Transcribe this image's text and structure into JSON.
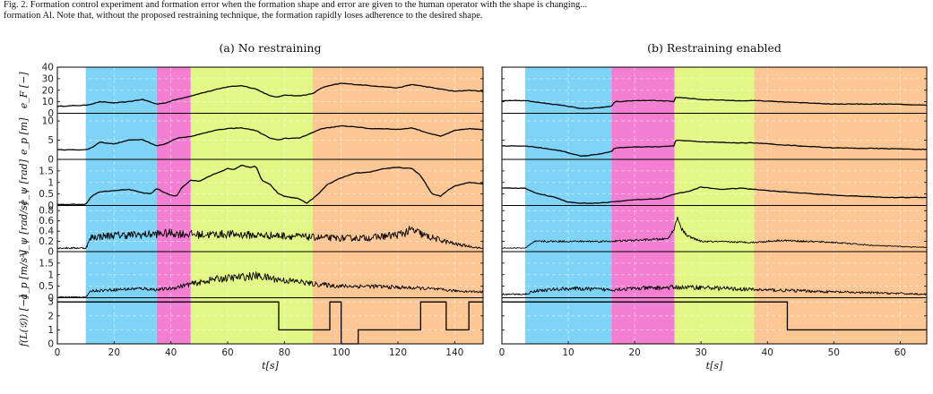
{
  "caption": {
    "line1": "Fig. 2. Formation control experiment and formation error when the formation shape and error are given to the human operator with the shape is changing...",
    "line2": "formation Al. Note that, without the proposed restraining technique, the formation rapidly loses adherence to the desired shape."
  },
  "colors": {
    "phase_blue": "#7fd3f7",
    "phase_pink": "#f27fd1",
    "phase_lime": "#e3f786",
    "phase_orange": "#fdc695",
    "line": "#000000",
    "grid": "#d8d8d8"
  },
  "rows": [
    {
      "key": "eF",
      "label": "e_F [−]",
      "ylim": [
        0,
        40
      ],
      "ticks": [
        "40",
        "30",
        "20",
        "10",
        "0"
      ],
      "tick_values": [
        40,
        30,
        20,
        10,
        0
      ]
    },
    {
      "key": "ep",
      "label": "e_p [m]",
      "ylim": [
        0,
        12
      ],
      "ticks": [
        "10",
        "5",
        "0"
      ],
      "tick_values": [
        10,
        5,
        0
      ]
    },
    {
      "key": "epsi",
      "label": "e_ψ [rad]",
      "ylim": [
        0,
        2
      ],
      "ticks": [
        "1.5",
        "1",
        "0.5",
        "0"
      ],
      "tick_values": [
        1.5,
        1,
        0.5,
        0
      ]
    },
    {
      "key": "vpsi",
      "label": "v_ψ [rad/s]",
      "ylim": [
        0,
        0.9
      ],
      "ticks": [
        "0.8",
        "0.6",
        "0.4",
        "0.2",
        "0"
      ],
      "tick_values": [
        0.8,
        0.6,
        0.4,
        0.2,
        0
      ]
    },
    {
      "key": "ap",
      "label": "a_p [m/s²]",
      "ylim": [
        0,
        2
      ],
      "ticks": [
        "1.5",
        "1",
        "0.5",
        "0"
      ],
      "tick_values": [
        1.5,
        1,
        0.5,
        0
      ]
    },
    {
      "key": "fL",
      "label": "f(L(𝒢)) [−]",
      "ylim": [
        0,
        3.3
      ],
      "ticks": [
        "3",
        "2",
        "1",
        "0"
      ],
      "tick_values": [
        3,
        2,
        1,
        0
      ]
    }
  ],
  "chart_data": [
    {
      "type": "line",
      "title": "(a) No restraining",
      "xlabel": "t[s]",
      "xlim": [
        0,
        150
      ],
      "xticks": [
        0,
        20,
        40,
        60,
        80,
        100,
        120,
        140
      ],
      "phases": [
        {
          "from": 10,
          "to": 35,
          "color": "phase_blue"
        },
        {
          "from": 35,
          "to": 47,
          "color": "phase_pink"
        },
        {
          "from": 47,
          "to": 90,
          "color": "phase_lime"
        },
        {
          "from": 90,
          "to": 150,
          "color": "phase_orange"
        }
      ],
      "series": {
        "eF": {
          "t": [
            0,
            10,
            12,
            15,
            20,
            25,
            30,
            35,
            38,
            42,
            47,
            50,
            55,
            60,
            65,
            70,
            75,
            78,
            80,
            85,
            90,
            93,
            96,
            100,
            105,
            110,
            115,
            120,
            125,
            130,
            135,
            140,
            145,
            150
          ],
          "v": [
            6,
            7,
            8,
            10,
            9,
            10,
            12,
            8,
            9,
            12,
            15,
            17,
            20,
            23,
            24,
            21,
            15,
            14,
            16,
            15,
            17,
            22,
            24,
            26,
            25,
            24,
            23,
            22,
            25,
            23,
            21,
            19,
            20,
            19
          ]
        },
        "ep": {
          "t": [
            0,
            10,
            12,
            15,
            20,
            25,
            30,
            35,
            38,
            42,
            47,
            50,
            55,
            60,
            65,
            70,
            75,
            78,
            80,
            85,
            90,
            93,
            96,
            100,
            105,
            110,
            115,
            120,
            125,
            130,
            135,
            140,
            145,
            150
          ],
          "v": [
            2.5,
            2.5,
            3,
            4.5,
            4,
            5,
            5.2,
            3.5,
            4,
            5.5,
            6,
            6.5,
            7.5,
            8,
            8.2,
            7.5,
            5.5,
            5,
            5.5,
            5.5,
            7,
            8,
            8.3,
            8.7,
            8.5,
            8,
            8,
            7.8,
            8.2,
            7,
            6,
            7.5,
            8,
            7.7
          ]
        },
        "epsi": {
          "t": [
            0,
            10,
            12,
            15,
            20,
            25,
            30,
            33,
            35,
            37,
            40,
            42,
            44,
            47,
            50,
            55,
            60,
            62,
            65,
            68,
            70,
            72,
            75,
            78,
            80,
            85,
            88,
            90,
            92,
            95,
            100,
            105,
            110,
            115,
            120,
            125,
            128,
            130,
            132,
            135,
            138,
            140,
            145,
            150
          ],
          "v": [
            0.05,
            0.05,
            0.4,
            0.6,
            0.65,
            0.7,
            0.55,
            0.5,
            0.75,
            0.6,
            0.45,
            0.4,
            0.8,
            1.1,
            1.05,
            1.35,
            1.6,
            1.55,
            1.75,
            1.65,
            1.7,
            1.1,
            0.9,
            0.5,
            0.4,
            0.3,
            0.1,
            0.3,
            0.5,
            0.9,
            1.2,
            1.4,
            1.45,
            1.6,
            1.65,
            1.6,
            1.3,
            0.9,
            0.5,
            0.4,
            0.7,
            0.85,
            1.0,
            0.95
          ]
        },
        "vpsi": {
          "t": [
            0,
            10,
            12,
            20,
            30,
            40,
            50,
            60,
            70,
            80,
            90,
            100,
            110,
            120,
            125,
            130,
            140,
            150
          ],
          "v": [
            0.07,
            0.07,
            0.28,
            0.32,
            0.33,
            0.36,
            0.33,
            0.34,
            0.32,
            0.31,
            0.28,
            0.26,
            0.27,
            0.33,
            0.42,
            0.3,
            0.15,
            0.06
          ],
          "noise": 0.1
        },
        "ap": {
          "t": [
            0,
            10,
            12,
            20,
            30,
            35,
            40,
            47,
            50,
            55,
            60,
            65,
            70,
            75,
            80,
            85,
            90,
            95,
            100,
            110,
            120,
            130,
            140,
            150
          ],
          "v": [
            0.03,
            0.03,
            0.3,
            0.35,
            0.4,
            0.35,
            0.4,
            0.6,
            0.65,
            0.8,
            0.85,
            0.9,
            0.95,
            0.85,
            0.75,
            0.7,
            0.6,
            0.55,
            0.5,
            0.5,
            0.45,
            0.4,
            0.3,
            0.25
          ],
          "noise": 0.18
        },
        "fL": {
          "steps": [
            [
              0,
              3
            ],
            [
              78,
              1
            ],
            [
              96,
              3
            ],
            [
              100,
              0
            ],
            [
              106,
              1
            ],
            [
              128,
              3
            ],
            [
              137,
              1
            ],
            [
              145,
              3
            ],
            [
              150,
              3
            ]
          ]
        }
      }
    },
    {
      "type": "line",
      "title": "(b) Restraining enabled",
      "xlabel": "t[s]",
      "xlim": [
        0,
        64
      ],
      "xticks": [
        0,
        10,
        20,
        30,
        40,
        50,
        60
      ],
      "phases": [
        {
          "from": 3.5,
          "to": 16.5,
          "color": "phase_blue"
        },
        {
          "from": 16.5,
          "to": 26,
          "color": "phase_pink"
        },
        {
          "from": 26,
          "to": 38,
          "color": "phase_lime"
        },
        {
          "from": 38,
          "to": 64,
          "color": "phase_orange"
        }
      ],
      "series": {
        "eF": {
          "t": [
            0,
            3.5,
            6,
            9,
            12,
            15,
            16.5,
            17,
            20,
            24,
            26,
            26.2,
            30,
            35,
            38,
            42,
            50,
            58,
            64
          ],
          "v": [
            11,
            11,
            9,
            7,
            4,
            5,
            6,
            10,
            11,
            11,
            10,
            14,
            12,
            11,
            11,
            10,
            8,
            8,
            7
          ]
        },
        "ep": {
          "t": [
            0,
            3.5,
            6,
            9,
            12,
            15,
            16.5,
            17,
            20,
            24,
            26,
            26.2,
            30,
            35,
            38,
            42,
            50,
            58,
            64
          ],
          "v": [
            3.5,
            3.5,
            3,
            2.2,
            0.8,
            1.5,
            2,
            3,
            3.2,
            3.3,
            3.5,
            5,
            4.6,
            4.3,
            4.3,
            3.8,
            3,
            2.8,
            2.6
          ]
        },
        "epsi": {
          "t": [
            0,
            3.5,
            5,
            8,
            10,
            12,
            14,
            16.5,
            20,
            24,
            26,
            28,
            30,
            33,
            36,
            38,
            42,
            50,
            58,
            64
          ],
          "v": [
            0.75,
            0.75,
            0.55,
            0.35,
            0.15,
            0.1,
            0.1,
            0.15,
            0.25,
            0.3,
            0.5,
            0.6,
            0.8,
            0.7,
            0.75,
            0.7,
            0.6,
            0.45,
            0.35,
            0.35
          ]
        },
        "vpsi": {
          "t": [
            0,
            3.5,
            5,
            16,
            20,
            25,
            26,
            26.5,
            27,
            28,
            30,
            38,
            42,
            50,
            56,
            60,
            64
          ],
          "v": [
            0.07,
            0.07,
            0.2,
            0.2,
            0.22,
            0.25,
            0.45,
            0.7,
            0.45,
            0.3,
            0.2,
            0.18,
            0.22,
            0.18,
            0.12,
            0.1,
            0.08
          ],
          "noise": 0.06
        },
        "ap": {
          "t": [
            0,
            3.5,
            5,
            10,
            16,
            20,
            26,
            30,
            38,
            45,
            50,
            58,
            64
          ],
          "v": [
            0.15,
            0.15,
            0.3,
            0.4,
            0.35,
            0.4,
            0.45,
            0.45,
            0.35,
            0.3,
            0.25,
            0.2,
            0.15
          ],
          "noise": 0.1
        },
        "fL": {
          "steps": [
            [
              0,
              3
            ],
            [
              43,
              1
            ],
            [
              64,
              1
            ]
          ]
        }
      }
    }
  ]
}
